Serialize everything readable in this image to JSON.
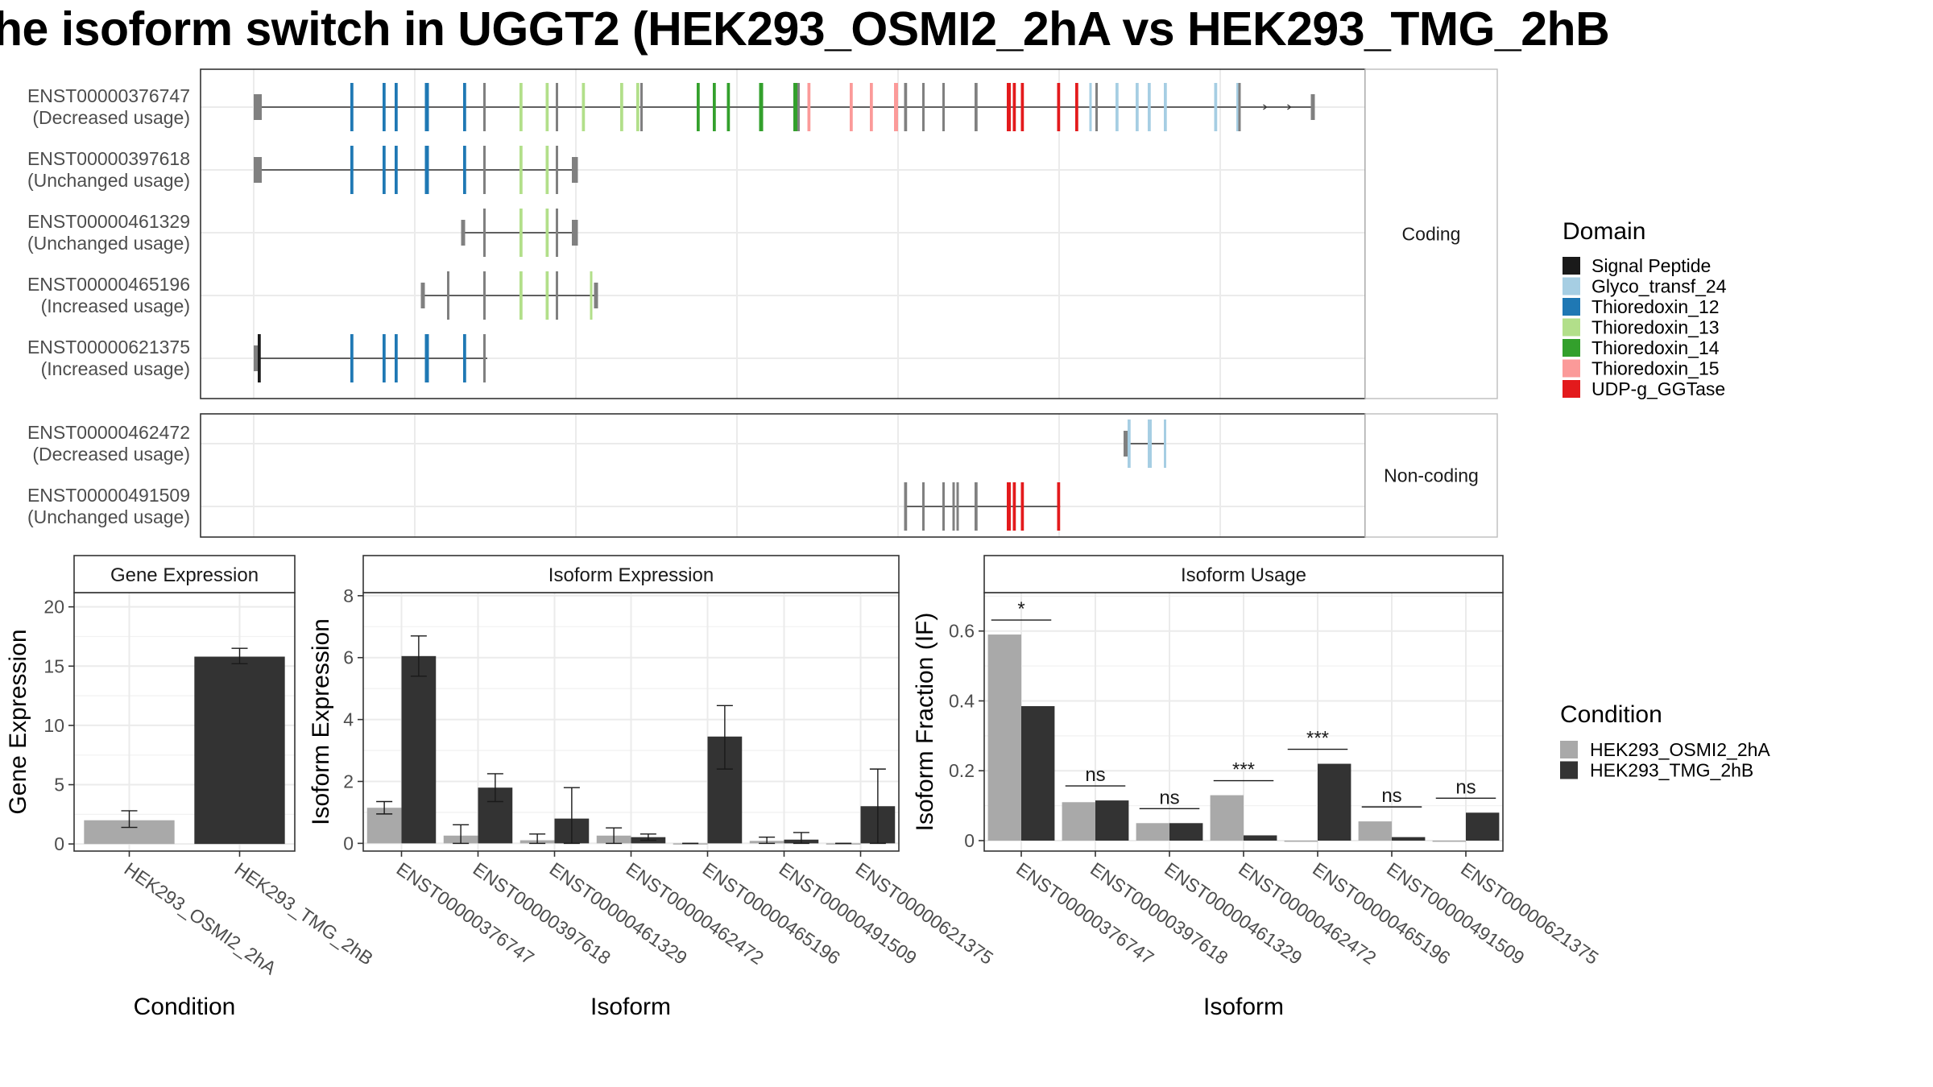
{
  "title": "he isoform switch in UGGT2 (HEK293_OSMI2_2hA vs HEK293_TMG_2hB",
  "colors": {
    "Signal Peptide": "#1a1a1a",
    "Glyco_transf_24": "#a6cee3",
    "Thioredoxin_12": "#1f78b4",
    "Thioredoxin_13": "#b2df8a",
    "Thioredoxin_14": "#33a02c",
    "Thioredoxin_15": "#fb9a99",
    "UDP-g_GGTase": "#e31a1c",
    "none": "#808080",
    "HEK293_OSMI2_2hA": "#a9a9a9",
    "HEK293_TMG_2hB": "#333333"
  },
  "structure": {
    "groups": [
      {
        "label": "Coding",
        "isoforms": [
          {
            "id": "ENST00000376747",
            "usage": "(Decreased usage)",
            "exons": [
              {
                "s": 50,
                "e": 54,
                "d": "none",
                "thick": true
              },
              {
                "s": 98,
                "e": 99.5,
                "d": "Thioredoxin_12"
              },
              {
                "s": 114,
                "e": 115.5,
                "d": "Thioredoxin_12"
              },
              {
                "s": 120,
                "e": 121.5,
                "d": "Thioredoxin_12"
              },
              {
                "s": 135,
                "e": 137,
                "d": "Thioredoxin_12"
              },
              {
                "s": 154,
                "e": 155.5,
                "d": "Thioredoxin_12"
              },
              {
                "s": 164,
                "e": 165,
                "d": "none"
              },
              {
                "s": 182,
                "e": 183.5,
                "d": "Thioredoxin_13"
              },
              {
                "s": 195,
                "e": 196.5,
                "d": "Thioredoxin_13"
              },
              {
                "s": 200,
                "e": 201,
                "d": "none"
              },
              {
                "s": 213,
                "e": 214.5,
                "d": "Thioredoxin_13"
              },
              {
                "s": 232,
                "e": 233.5,
                "d": "Thioredoxin_13"
              },
              {
                "s": 240,
                "e": 241.5,
                "d": "Thioredoxin_13"
              },
              {
                "s": 242,
                "e": 243,
                "d": "none"
              },
              {
                "s": 270,
                "e": 271.5,
                "d": "Thioredoxin_14"
              },
              {
                "s": 278,
                "e": 279.5,
                "d": "Thioredoxin_14"
              },
              {
                "s": 285,
                "e": 286.5,
                "d": "Thioredoxin_14"
              },
              {
                "s": 301,
                "e": 303,
                "d": "Thioredoxin_14"
              },
              {
                "s": 318,
                "e": 320,
                "d": "Thioredoxin_14"
              },
              {
                "s": 320,
                "e": 321,
                "d": "none"
              },
              {
                "s": 325,
                "e": 326.5,
                "d": "Thioredoxin_15"
              },
              {
                "s": 346,
                "e": 347.5,
                "d": "Thioredoxin_15"
              },
              {
                "s": 356,
                "e": 357.5,
                "d": "Thioredoxin_15"
              },
              {
                "s": 368,
                "e": 370,
                "d": "Thioredoxin_15"
              },
              {
                "s": 373,
                "e": 374.5,
                "d": "none"
              },
              {
                "s": 382,
                "e": 383,
                "d": "none"
              },
              {
                "s": 392,
                "e": 393,
                "d": "none"
              },
              {
                "s": 408,
                "e": 409.5,
                "d": "none"
              },
              {
                "s": 424,
                "e": 426,
                "d": "UDP-g_GGTase"
              },
              {
                "s": 427,
                "e": 428.5,
                "d": "UDP-g_GGTase"
              },
              {
                "s": 431,
                "e": 432.5,
                "d": "UDP-g_GGTase"
              },
              {
                "s": 449,
                "e": 450.5,
                "d": "UDP-g_GGTase"
              },
              {
                "s": 458,
                "e": 459.5,
                "d": "UDP-g_GGTase"
              },
              {
                "s": 465,
                "e": 466,
                "d": "Glyco_transf_24"
              },
              {
                "s": 468,
                "e": 469,
                "d": "none"
              },
              {
                "s": 478,
                "e": 479.5,
                "d": "Glyco_transf_24"
              },
              {
                "s": 488,
                "e": 489.5,
                "d": "Glyco_transf_24"
              },
              {
                "s": 494,
                "e": 495.5,
                "d": "Glyco_transf_24"
              },
              {
                "s": 502,
                "e": 503.5,
                "d": "Glyco_transf_24"
              },
              {
                "s": 527,
                "e": 528.5,
                "d": "Glyco_transf_24"
              },
              {
                "s": 538,
                "e": 539.5,
                "d": "Glyco_transf_24"
              },
              {
                "s": 539,
                "e": 540,
                "d": "none"
              },
              {
                "s": 575,
                "e": 577,
                "d": "none",
                "thick": true
              }
            ],
            "arrows": [
              553,
              565
            ]
          },
          {
            "id": "ENST00000397618",
            "usage": "(Unchanged usage)",
            "exons": [
              {
                "s": 50,
                "e": 54,
                "d": "none",
                "thick": true
              },
              {
                "s": 98,
                "e": 99.5,
                "d": "Thioredoxin_12"
              },
              {
                "s": 114,
                "e": 115.5,
                "d": "Thioredoxin_12"
              },
              {
                "s": 120,
                "e": 121.5,
                "d": "Thioredoxin_12"
              },
              {
                "s": 135,
                "e": 137,
                "d": "Thioredoxin_12"
              },
              {
                "s": 154,
                "e": 155.5,
                "d": "Thioredoxin_12"
              },
              {
                "s": 164,
                "e": 165,
                "d": "none"
              },
              {
                "s": 182,
                "e": 183.5,
                "d": "Thioredoxin_13"
              },
              {
                "s": 195,
                "e": 196.5,
                "d": "Thioredoxin_13"
              },
              {
                "s": 200,
                "e": 201,
                "d": "none"
              },
              {
                "s": 208,
                "e": 211,
                "d": "none",
                "thick": true
              }
            ],
            "arrows": []
          },
          {
            "id": "ENST00000461329",
            "usage": "(Unchanged usage)",
            "exons": [
              {
                "s": 153,
                "e": 155,
                "d": "none",
                "thick": true
              },
              {
                "s": 164,
                "e": 165,
                "d": "none"
              },
              {
                "s": 182,
                "e": 183.5,
                "d": "Thioredoxin_13"
              },
              {
                "s": 195,
                "e": 196.5,
                "d": "Thioredoxin_13"
              },
              {
                "s": 200,
                "e": 201,
                "d": "none"
              },
              {
                "s": 208,
                "e": 211,
                "d": "none",
                "thick": true
              }
            ],
            "arrows": []
          },
          {
            "id": "ENST00000465196",
            "usage": "(Increased usage)",
            "exons": [
              {
                "s": 133,
                "e": 135,
                "d": "none",
                "thick": true
              },
              {
                "s": 146,
                "e": 147,
                "d": "none"
              },
              {
                "s": 164,
                "e": 165,
                "d": "none"
              },
              {
                "s": 182,
                "e": 183.5,
                "d": "Thioredoxin_13"
              },
              {
                "s": 195,
                "e": 196.5,
                "d": "Thioredoxin_13"
              },
              {
                "s": 200,
                "e": 201,
                "d": "none"
              },
              {
                "s": 217,
                "e": 218,
                "d": "Thioredoxin_13"
              },
              {
                "s": 219,
                "e": 221,
                "d": "none",
                "thick": true
              }
            ],
            "arrows": []
          },
          {
            "id": "ENST00000621375",
            "usage": "(Increased usage)",
            "exons": [
              {
                "s": 50,
                "e": 52,
                "d": "none",
                "thick": true
              },
              {
                "s": 52,
                "e": 53.5,
                "d": "Signal Peptide"
              },
              {
                "s": 98,
                "e": 99.5,
                "d": "Thioredoxin_12"
              },
              {
                "s": 114,
                "e": 115.5,
                "d": "Thioredoxin_12"
              },
              {
                "s": 120,
                "e": 121.5,
                "d": "Thioredoxin_12"
              },
              {
                "s": 135,
                "e": 137,
                "d": "Thioredoxin_12"
              },
              {
                "s": 154,
                "e": 155.5,
                "d": "Thioredoxin_12"
              },
              {
                "s": 164,
                "e": 165,
                "d": "none"
              }
            ],
            "end": 166,
            "arrows": []
          }
        ]
      },
      {
        "label": "Non-coding",
        "isoforms": [
          {
            "id": "ENST00000462472",
            "usage": "(Decreased usage)",
            "exons": [
              {
                "s": 482,
                "e": 484,
                "d": "none",
                "thick": true
              },
              {
                "s": 484,
                "e": 485.5,
                "d": "Glyco_transf_24"
              },
              {
                "s": 494,
                "e": 496,
                "d": "Glyco_transf_24"
              },
              {
                "s": 502,
                "e": 503,
                "d": "Glyco_transf_24"
              }
            ],
            "end": 503,
            "arrows": []
          },
          {
            "id": "ENST00000491509",
            "usage": "(Unchanged usage)",
            "exons": [
              {
                "s": 373,
                "e": 374.5,
                "d": "none"
              },
              {
                "s": 382,
                "e": 383,
                "d": "none"
              },
              {
                "s": 392,
                "e": 393,
                "d": "none"
              },
              {
                "s": 397,
                "e": 398,
                "d": "none"
              },
              {
                "s": 399,
                "e": 400,
                "d": "none"
              },
              {
                "s": 408,
                "e": 409.5,
                "d": "none"
              },
              {
                "s": 424,
                "e": 426,
                "d": "UDP-g_GGTase"
              },
              {
                "s": 427,
                "e": 428.5,
                "d": "UDP-g_GGTase"
              },
              {
                "s": 431,
                "e": 432.5,
                "d": "UDP-g_GGTase"
              },
              {
                "s": 449,
                "e": 450.5,
                "d": "UDP-g_GGTase"
              }
            ],
            "arrows": []
          }
        ]
      }
    ]
  },
  "legends": {
    "domain": {
      "title": "Domain",
      "items": [
        "Signal Peptide",
        "Glyco_transf_24",
        "Thioredoxin_12",
        "Thioredoxin_13",
        "Thioredoxin_14",
        "Thioredoxin_15",
        "UDP-g_GGTase"
      ]
    },
    "condition": {
      "title": "Condition",
      "items": [
        "HEK293_OSMI2_2hA",
        "HEK293_TMG_2hB"
      ]
    }
  },
  "chart_data": [
    {
      "type": "bar",
      "title": "Gene Expression",
      "xlabel": "Condition",
      "ylabel": "Gene Expression",
      "ylim": [
        -0.6,
        21.2
      ],
      "yticks": [
        0,
        5,
        10,
        15,
        20
      ],
      "categories": [
        "HEK293_OSMI2_2hA",
        "HEK293_TMG_2hB"
      ],
      "values": [
        2.0,
        15.8
      ],
      "errors": [
        [
          1.4,
          2.8
        ],
        [
          15.2,
          16.5
        ]
      ]
    },
    {
      "type": "bar",
      "title": "Isoform Expression",
      "xlabel": "Isoform",
      "ylabel": "Isoform Expression",
      "ylim": [
        -0.25,
        8.1
      ],
      "yticks": [
        0,
        2,
        4,
        6,
        8
      ],
      "categories": [
        "ENST00000376747",
        "ENST00000397618",
        "ENST00000461329",
        "ENST00000462472",
        "ENST00000465196",
        "ENST00000491509",
        "ENST00000621375"
      ],
      "series": [
        {
          "name": "HEK293_OSMI2_2hA",
          "values": [
            1.15,
            0.25,
            0.1,
            0.25,
            0.0,
            0.08,
            0.0
          ],
          "errors": [
            [
              0.95,
              1.35
            ],
            [
              0.0,
              0.6
            ],
            [
              0.0,
              0.3
            ],
            [
              0.0,
              0.5
            ],
            [
              0,
              0
            ],
            [
              0.0,
              0.2
            ],
            [
              0,
              0
            ]
          ]
        },
        {
          "name": "HEK293_TMG_2hB",
          "values": [
            6.05,
            1.8,
            0.8,
            0.2,
            3.45,
            0.12,
            1.2
          ],
          "errors": [
            [
              5.4,
              6.7
            ],
            [
              1.35,
              2.25
            ],
            [
              0.0,
              1.8
            ],
            [
              0.1,
              0.3
            ],
            [
              2.4,
              4.45
            ],
            [
              0.0,
              0.35
            ],
            [
              0.0,
              2.4
            ]
          ]
        }
      ]
    },
    {
      "type": "bar",
      "title": "Isoform Usage",
      "xlabel": "Isoform",
      "ylabel": "Isoform Fraction (IF)",
      "ylim": [
        -0.03,
        0.71
      ],
      "yticks": [
        0.0,
        0.2,
        0.4,
        0.6
      ],
      "categories": [
        "ENST00000376747",
        "ENST00000397618",
        "ENST00000461329",
        "ENST00000462472",
        "ENST00000465196",
        "ENST00000491509",
        "ENST00000621375"
      ],
      "series": [
        {
          "name": "HEK293_OSMI2_2hA",
          "values": [
            0.59,
            0.11,
            0.05,
            0.13,
            0.0,
            0.055,
            0.0
          ]
        },
        {
          "name": "HEK293_TMG_2hB",
          "values": [
            0.385,
            0.115,
            0.05,
            0.015,
            0.22,
            0.01,
            0.08
          ]
        }
      ],
      "significance": [
        "*",
        "ns",
        "ns",
        "***",
        "***",
        "ns",
        "ns"
      ]
    }
  ]
}
